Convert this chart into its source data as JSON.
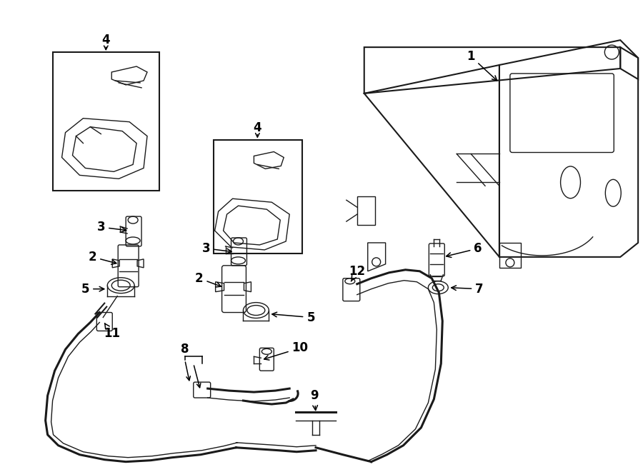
{
  "bg_color": "#ffffff",
  "line_color": "#1a1a1a",
  "label_fontsize": 12,
  "fig_width": 9.0,
  "fig_height": 6.61,
  "dpi": 100
}
